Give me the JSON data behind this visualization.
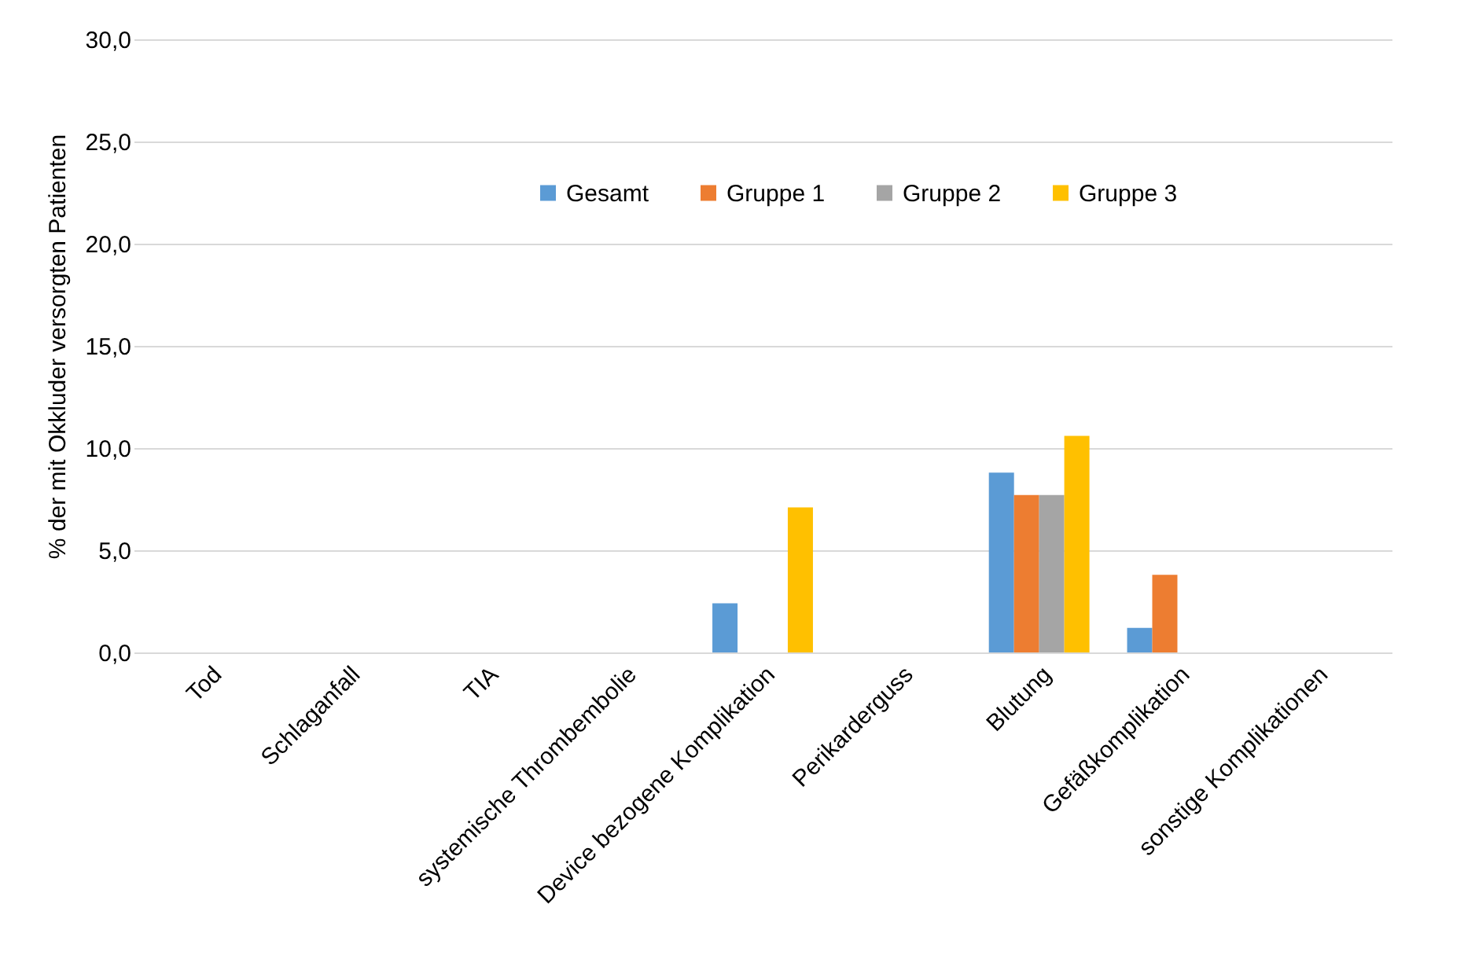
{
  "chart_data": {
    "type": "bar",
    "ylabel": "% der mit Okkluder versorgten Patienten",
    "categories": [
      "Tod",
      "Schlaganfall",
      "TIA",
      "systemische Thrombembolie",
      "Device bezogene Komplikation",
      "Perikarderguss",
      "Blutung",
      "Gefäßkomplikation",
      "sonstige Komplikationen"
    ],
    "series": [
      {
        "name": "Gesamt",
        "color": "#5b9bd5",
        "values": [
          0,
          0,
          0,
          0,
          2.4,
          0,
          8.8,
          1.2,
          0
        ]
      },
      {
        "name": "Gruppe 1",
        "color": "#ed7d31",
        "values": [
          0,
          0,
          0,
          0,
          0,
          0,
          7.7,
          3.8,
          0
        ]
      },
      {
        "name": "Gruppe 2",
        "color": "#a5a5a5",
        "values": [
          0,
          0,
          0,
          0,
          0,
          0,
          7.7,
          0,
          0
        ]
      },
      {
        "name": "Gruppe 3",
        "color": "#ffc000",
        "values": [
          0,
          0,
          0,
          0,
          7.1,
          0,
          10.6,
          0,
          0
        ]
      }
    ],
    "ylim": [
      0,
      30
    ],
    "yticks": [
      {
        "value": 0,
        "label": "0,0"
      },
      {
        "value": 5,
        "label": "5,0"
      },
      {
        "value": 10,
        "label": "10,0"
      },
      {
        "value": 15,
        "label": "15,0"
      },
      {
        "value": 20,
        "label": "20,0"
      },
      {
        "value": 25,
        "label": "25,0"
      },
      {
        "value": 30,
        "label": "30,0"
      }
    ],
    "grid": "y",
    "legend": "top"
  }
}
